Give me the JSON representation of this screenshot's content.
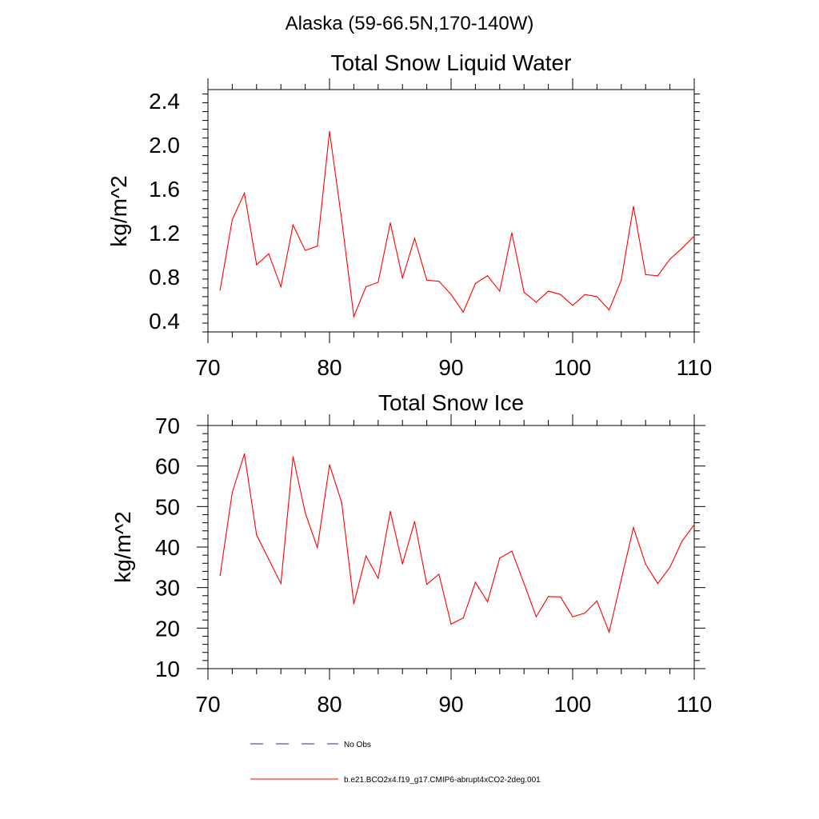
{
  "page_title": "Alaska (59-66.5N,170-140W)",
  "legend": [
    {
      "label": "No Obs",
      "color": "#2b2b8c",
      "style": "dashed"
    },
    {
      "label": "b.e21.BCO2x4.f19_g17.CMIP6-abrupt4xCO2-2deg.001",
      "color": "#ff0000",
      "style": "solid"
    }
  ],
  "chart_data": [
    {
      "type": "line",
      "title": "Total Snow Liquid Water",
      "xlabel": "",
      "ylabel": "kg/m^2",
      "xlim": [
        70,
        110
      ],
      "ylim": [
        0.3,
        2.5
      ],
      "xticks": [
        "70",
        "80",
        "90",
        "100",
        "110"
      ],
      "yticks": [
        "0.4",
        "0.8",
        "1.2",
        "1.6",
        "2.0",
        "2.4"
      ],
      "series": [
        {
          "color": "#ff0000",
          "x": [
            71,
            72,
            73,
            74,
            75,
            76,
            77,
            78,
            79,
            80,
            81,
            82,
            83,
            84,
            85,
            86,
            87,
            88,
            89,
            90,
            91,
            92,
            93,
            94,
            95,
            96,
            97,
            98,
            99,
            100,
            101,
            102,
            103,
            104,
            105,
            106,
            107,
            108,
            109,
            110
          ],
          "values": [
            0.68,
            1.32,
            1.56,
            0.91,
            1.01,
            0.71,
            1.27,
            1.04,
            1.08,
            2.12,
            1.32,
            0.44,
            0.71,
            0.75,
            1.29,
            0.79,
            1.15,
            0.77,
            0.76,
            0.64,
            0.48,
            0.74,
            0.81,
            0.67,
            1.2,
            0.66,
            0.57,
            0.67,
            0.64,
            0.54,
            0.64,
            0.62,
            0.5,
            0.77,
            1.44,
            0.82,
            0.81,
            0.96,
            1.06,
            1.17
          ]
        }
      ]
    },
    {
      "type": "line",
      "title": "Total Snow Ice",
      "xlabel": "",
      "ylabel": "kg/m^2",
      "xlim": [
        70,
        110
      ],
      "ylim": [
        10,
        70
      ],
      "xticks": [
        "70",
        "80",
        "90",
        "100",
        "110"
      ],
      "yticks": [
        "10",
        "20",
        "30",
        "40",
        "50",
        "60",
        "70"
      ],
      "series": [
        {
          "color": "#ff0000",
          "x": [
            71,
            72,
            73,
            74,
            75,
            76,
            77,
            78,
            79,
            80,
            81,
            82,
            83,
            84,
            85,
            86,
            87,
            88,
            89,
            90,
            91,
            92,
            93,
            94,
            95,
            96,
            97,
            98,
            99,
            100,
            101,
            102,
            103,
            104,
            105,
            106,
            107,
            108,
            109,
            110
          ],
          "values": [
            33,
            53.5,
            63,
            43,
            37,
            31,
            62.3,
            48.5,
            39.8,
            60.3,
            51,
            26,
            37.8,
            32.3,
            48.8,
            35.8,
            46.3,
            30.8,
            33.3,
            21,
            22.5,
            31.3,
            26.5,
            37.3,
            39,
            31,
            22.8,
            27.8,
            27.7,
            22.8,
            23.7,
            26.7,
            19,
            32,
            44.8,
            35.8,
            31,
            35,
            41.5,
            45.5
          ]
        }
      ]
    }
  ]
}
